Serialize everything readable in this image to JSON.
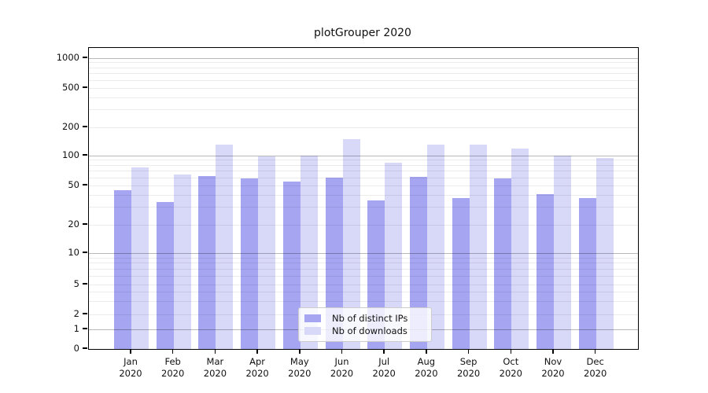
{
  "figure": {
    "title": "plotGrouper 2020"
  },
  "chart_data": {
    "type": "bar",
    "title": "plotGrouper 2020",
    "categories": [
      "Jan",
      "Feb",
      "Mar",
      "Apr",
      "May",
      "Jun",
      "Jul",
      "Aug",
      "Sep",
      "Oct",
      "Nov",
      "Dec"
    ],
    "x_year": "2020",
    "series": [
      {
        "name": "Nb of distinct IPs",
        "color": "#a5a5f2",
        "values": [
          45,
          34,
          62,
          59,
          55,
          60,
          35,
          61,
          37,
          59,
          41,
          37
        ]
      },
      {
        "name": "Nb of downloads",
        "color": "#d8d8f8",
        "values": [
          76,
          64,
          130,
          98,
          100,
          150,
          85,
          130,
          130,
          120,
          100,
          95
        ]
      }
    ],
    "y_scale": "symlog",
    "ylim": [
      0,
      1000
    ],
    "y_ticks": [
      0,
      1,
      2,
      5,
      10,
      20,
      50,
      100,
      200,
      500,
      1000
    ],
    "major_grid_values": [
      1,
      10,
      100,
      1000
    ],
    "grid": true,
    "legend_position": "lower center",
    "colors": {
      "major_grid": "#b3b3b3",
      "minor_grid": "#e8e8e8",
      "axis": "#000000",
      "text": "#111111"
    }
  }
}
